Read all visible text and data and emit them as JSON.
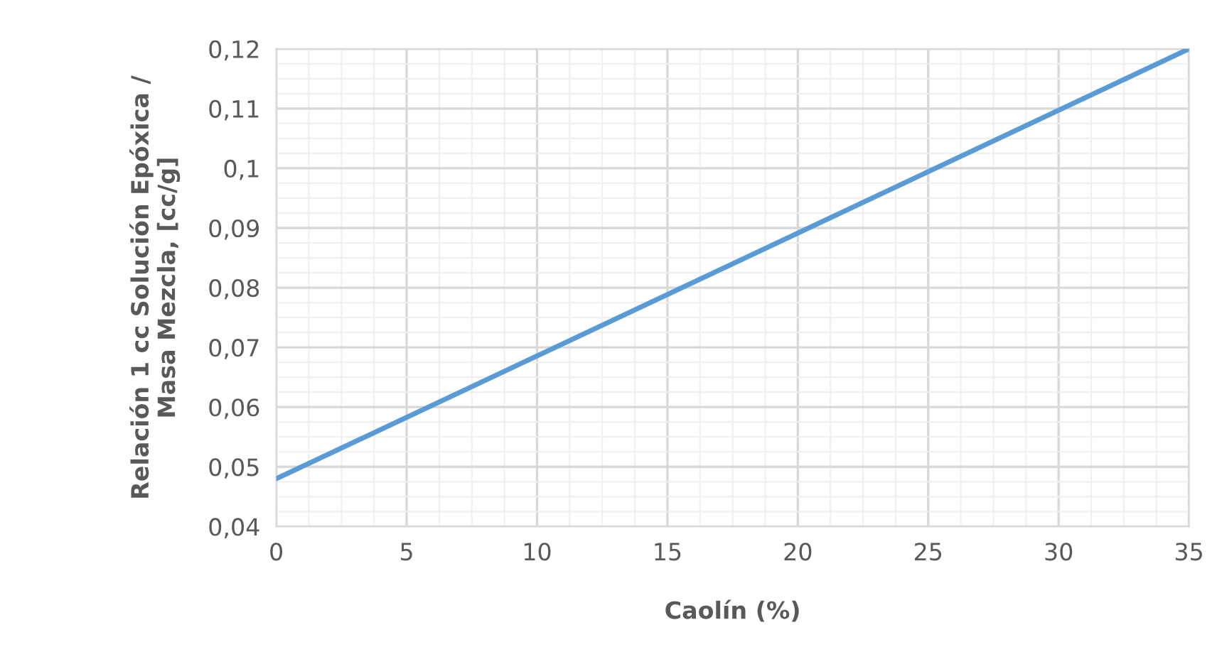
{
  "chart_data": {
    "type": "line",
    "xlabel": "Caolín (%)",
    "ylabel": "Relación 1 cc Solución Epóxica /\nMasa Mezcla, [cc/g]",
    "x": [
      0,
      35
    ],
    "series": [
      {
        "color": "#5b9bd5",
        "values": [
          0.048,
          0.12
        ]
      }
    ],
    "xlim": [
      0,
      35
    ],
    "xticks": [
      0,
      5,
      10,
      15,
      20,
      25,
      30,
      35
    ],
    "ylim": [
      0.04,
      0.12
    ],
    "yticks": [
      {
        "value": 0.04,
        "label": "0,04"
      },
      {
        "value": 0.05,
        "label": "0,05"
      },
      {
        "value": 0.06,
        "label": "0,06"
      },
      {
        "value": 0.07,
        "label": "0,07"
      },
      {
        "value": 0.08,
        "label": "0,08"
      },
      {
        "value": 0.09,
        "label": "0,09"
      },
      {
        "value": 0.1,
        "label": "0,1"
      },
      {
        "value": 0.11,
        "label": "0,11"
      },
      {
        "value": 0.12,
        "label": "0,12"
      }
    ],
    "grid": true,
    "legend": false,
    "marker": "none",
    "line_style": "solid"
  }
}
